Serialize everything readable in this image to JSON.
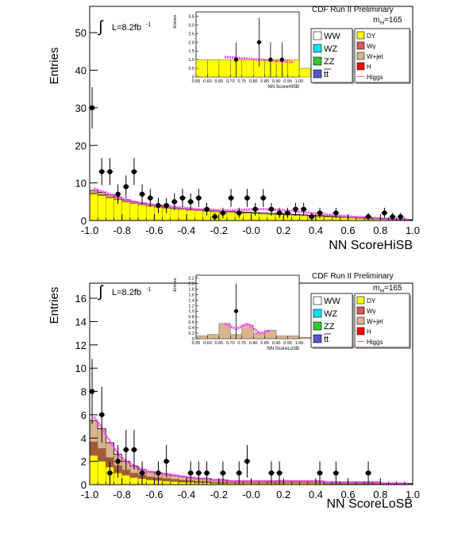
{
  "colors": {
    "WW": "#ffffff",
    "WZ": "#00e5ff",
    "ZZ": "#33cc33",
    "tt": "#5555cc",
    "DY": "#ffff00",
    "Wgamma": "#dd5555",
    "Wjet": "#d9b48f",
    "H": "#ff0000",
    "Higgs": "#ff44ff",
    "data": "#000000"
  },
  "chart_data": [
    {
      "type": "bar",
      "title": "CDF Run II Preliminary",
      "xlabel": "NN ScoreHiSB",
      "ylabel": "Entries",
      "luminosity": "L=8.2fb",
      "lumi_exp": "-1",
      "integral_symbol": "∫",
      "mass_label": "m",
      "mass_sub": "H",
      "mass_value": "=165",
      "xlim": [
        -1.0,
        1.0
      ],
      "ylim": [
        0,
        57
      ],
      "xticks": [
        "-1.0",
        "-0.8",
        "-0.6",
        "-0.4",
        "-0.2",
        "-0.0",
        "0.2",
        "0.4",
        "0.6",
        "0.8",
        "1.0"
      ],
      "yticks": [
        "0",
        "10",
        "20",
        "30",
        "40",
        "50"
      ],
      "ytick_values": [
        0,
        10,
        20,
        30,
        40,
        50
      ],
      "bin_width": 0.05,
      "bins_x_start": -1.0,
      "bkg_total": [
        8,
        7.5,
        6.8,
        6.2,
        5.5,
        5,
        4.6,
        4.2,
        3.9,
        3.6,
        3.4,
        3.2,
        3.0,
        2.9,
        2.7,
        2.6,
        2.5,
        2.4,
        2.3,
        2.2,
        2.1,
        2.0,
        1.9,
        1.8,
        1.7,
        1.6,
        1.5,
        1.4,
        1.3,
        1.2,
        1.1,
        1.0,
        0.9,
        0.8,
        0.7,
        0.6,
        0.5,
        0.4,
        0.3,
        0.2
      ],
      "dy_fill": [
        7,
        6.6,
        6.0,
        5.5,
        4.9,
        4.5,
        4.1,
        3.8,
        3.5,
        3.2,
        3.0,
        2.9,
        2.7,
        2.6,
        2.4,
        2.3,
        2.2,
        2.1,
        2.0,
        1.9,
        1.8,
        1.7,
        1.6,
        1.5,
        1.4,
        1.3,
        1.2,
        1.1,
        1.0,
        0.9,
        0.8,
        0.7,
        0.6,
        0.5,
        0.4,
        0.35,
        0.3,
        0.25,
        0.2,
        0.15
      ],
      "higgs": [
        8.5,
        7.8,
        7.0,
        6.3,
        5.6,
        5.0,
        4.6,
        4.3,
        4.0,
        3.8,
        3.6,
        3.4,
        3.2,
        3.0,
        2.9,
        2.8,
        2.7,
        2.7,
        2.8,
        2.9,
        3.0,
        3.0,
        2.9,
        2.8,
        2.6,
        2.4,
        2.2,
        2.0,
        1.8,
        1.6,
        1.4,
        1.2,
        1.0,
        0.9,
        0.8,
        0.6,
        0.5,
        0.4,
        0.3,
        0.2
      ],
      "data_points": [
        {
          "x": -0.985,
          "y": 30,
          "err": 5.5
        },
        {
          "x": -0.925,
          "y": 13,
          "err": 3.6
        },
        {
          "x": -0.875,
          "y": 13,
          "err": 3.6
        },
        {
          "x": -0.825,
          "y": 7,
          "err": 2.6
        },
        {
          "x": -0.775,
          "y": 9,
          "err": 3.0
        },
        {
          "x": -0.725,
          "y": 13,
          "err": 3.6
        },
        {
          "x": -0.675,
          "y": 7,
          "err": 2.6
        },
        {
          "x": -0.625,
          "y": 6,
          "err": 2.4
        },
        {
          "x": -0.575,
          "y": 4,
          "err": 2.0
        },
        {
          "x": -0.525,
          "y": 4,
          "err": 2.0
        },
        {
          "x": -0.475,
          "y": 5,
          "err": 2.2
        },
        {
          "x": -0.425,
          "y": 6,
          "err": 2.4
        },
        {
          "x": -0.375,
          "y": 5,
          "err": 2.2
        },
        {
          "x": -0.325,
          "y": 6,
          "err": 2.4
        },
        {
          "x": -0.275,
          "y": 3,
          "err": 1.7
        },
        {
          "x": -0.225,
          "y": 1,
          "err": 1.0
        },
        {
          "x": -0.175,
          "y": 2,
          "err": 1.4
        },
        {
          "x": -0.125,
          "y": 6,
          "err": 2.4
        },
        {
          "x": -0.075,
          "y": 2,
          "err": 1.4
        },
        {
          "x": -0.025,
          "y": 6,
          "err": 2.4
        },
        {
          "x": 0.025,
          "y": 3,
          "err": 1.7
        },
        {
          "x": 0.075,
          "y": 6,
          "err": 2.4
        },
        {
          "x": 0.125,
          "y": 3,
          "err": 1.7
        },
        {
          "x": 0.175,
          "y": 2,
          "err": 1.4
        },
        {
          "x": 0.225,
          "y": 2,
          "err": 1.4
        },
        {
          "x": 0.275,
          "y": 3,
          "err": 1.7
        },
        {
          "x": 0.325,
          "y": 3,
          "err": 1.7
        },
        {
          "x": 0.375,
          "y": 1,
          "err": 1.0
        },
        {
          "x": 0.425,
          "y": 2,
          "err": 1.4
        },
        {
          "x": 0.525,
          "y": 2,
          "err": 1.4
        },
        {
          "x": 0.725,
          "y": 1,
          "err": 1.0
        },
        {
          "x": 0.825,
          "y": 2,
          "err": 1.4
        },
        {
          "x": 0.875,
          "y": 1,
          "err": 1.0
        },
        {
          "x": 0.925,
          "y": 1,
          "err": 1.0
        }
      ],
      "inset": {
        "xlabel": "NN ScoreHiSB",
        "ylabel": "Entries",
        "xlim": [
          0.55,
          1.0
        ],
        "ylim": [
          0,
          3.75
        ],
        "xticks": [
          "0.55",
          "0.60",
          "0.65",
          "0.70",
          "0.75",
          "0.80",
          "0.85",
          "0.90",
          "0.95",
          "1.00"
        ],
        "yticks": [
          "0",
          "0.5",
          "1.0",
          "1.5",
          "2.0",
          "2.5",
          "3.0",
          "3.5"
        ],
        "ytick_values": [
          0,
          0.5,
          1.0,
          1.5,
          2.0,
          2.5,
          3.0,
          3.5
        ],
        "bkg_hist": [
          1.0,
          1.0,
          1.0,
          1.0,
          1.0,
          1.0,
          1.0,
          1.0,
          1.0,
          0.5
        ],
        "higgs": [
          null,
          null,
          1.15,
          1.1,
          1.05,
          1.0,
          0.95,
          0.9,
          0.85,
          null
        ],
        "data_points": [
          {
            "x": 0.725,
            "y": 1.0,
            "err": 1.0
          },
          {
            "x": 0.825,
            "y": 2.0,
            "err": 1.4
          },
          {
            "x": 0.875,
            "y": 1.0,
            "err": 1.0
          },
          {
            "x": 0.925,
            "y": 1.0,
            "err": 1.0
          }
        ]
      }
    },
    {
      "type": "bar",
      "title": "CDF Run II Preliminary",
      "xlabel": "NN ScoreLoSB",
      "ylabel": "Entries",
      "luminosity": "L=8.2fb",
      "lumi_exp": "-1",
      "integral_symbol": "∫",
      "mass_label": "m",
      "mass_sub": "H",
      "mass_value": "=165",
      "xlim": [
        -1.0,
        1.0
      ],
      "ylim": [
        0,
        17.3
      ],
      "xticks": [
        "-1.0",
        "-0.8",
        "-0.6",
        "-0.4",
        "-0.2",
        "-0.0",
        "0.2",
        "0.4",
        "0.6",
        "0.8",
        "1.0"
      ],
      "yticks": [
        "0",
        "2",
        "4",
        "6",
        "8",
        "10",
        "12",
        "14",
        "16"
      ],
      "ytick_values": [
        0,
        2,
        4,
        6,
        8,
        10,
        12,
        14,
        16
      ],
      "bin_width": 0.05,
      "bins_x_start": -1.0,
      "bkg_total": [
        5.5,
        4.8,
        3.6,
        2.6,
        2.0,
        1.6,
        1.3,
        1.1,
        1.0,
        0.9,
        0.8,
        0.7,
        0.6,
        0.5,
        0.5,
        0.4,
        0.4,
        0.3,
        0.3,
        0.3,
        0.3,
        0.3,
        0.3,
        0.3,
        0.3,
        0.3,
        0.3,
        0.3,
        0.3,
        0.2,
        0.2,
        0.2,
        0.2,
        0.2,
        0.2,
        0.2,
        0.1,
        0.1,
        0.1,
        0.1
      ],
      "dy_fill": [
        2.5,
        2.0,
        1.5,
        1.0,
        0.8,
        0.6,
        0.5,
        0.4,
        0.35,
        0.3,
        0.25,
        0.2,
        0.2,
        0.15,
        0.15,
        0.1,
        0.1,
        0.1,
        0.1,
        0.1,
        0.1,
        0.1,
        0.1,
        0.1,
        0.1,
        0.1,
        0.1,
        0.1,
        0.1,
        0.05,
        0.05,
        0.05,
        0.05,
        0.05,
        0.05,
        0.05,
        0.05,
        0.05,
        0.05,
        0.05
      ],
      "higgs": [
        5.8,
        4.9,
        3.7,
        2.7,
        2.0,
        1.6,
        1.3,
        1.1,
        1.0,
        0.9,
        0.8,
        0.7,
        0.6,
        0.5,
        0.5,
        0.4,
        0.4,
        0.3,
        0.3,
        0.3,
        0.3,
        0.3,
        0.3,
        0.3,
        0.3,
        0.3,
        0.3,
        0.3,
        0.3,
        0.2,
        0.2,
        0.2,
        0.2,
        0.2,
        0.2,
        0.2,
        0.1,
        0.1,
        0.1,
        0.1
      ],
      "data_points": [
        {
          "x": -0.985,
          "y": 8,
          "err": 2.8
        },
        {
          "x": -0.925,
          "y": 6,
          "err": 2.4
        },
        {
          "x": -0.875,
          "y": 1,
          "err": 1.0
        },
        {
          "x": -0.825,
          "y": 2,
          "err": 1.4
        },
        {
          "x": -0.775,
          "y": 3,
          "err": 1.7
        },
        {
          "x": -0.725,
          "y": 3,
          "err": 1.7
        },
        {
          "x": -0.675,
          "y": 1,
          "err": 1.0
        },
        {
          "x": -0.575,
          "y": 1,
          "err": 1.0
        },
        {
          "x": -0.525,
          "y": 2,
          "err": 1.4
        },
        {
          "x": -0.375,
          "y": 1,
          "err": 1.0
        },
        {
          "x": -0.325,
          "y": 1,
          "err": 1.0
        },
        {
          "x": -0.275,
          "y": 1,
          "err": 1.0
        },
        {
          "x": -0.175,
          "y": 1,
          "err": 1.0
        },
        {
          "x": -0.075,
          "y": 1,
          "err": 1.0
        },
        {
          "x": -0.025,
          "y": 2,
          "err": 1.4
        },
        {
          "x": 0.125,
          "y": 1,
          "err": 1.0
        },
        {
          "x": 0.175,
          "y": 1,
          "err": 1.0
        },
        {
          "x": 0.425,
          "y": 1,
          "err": 1.0
        },
        {
          "x": 0.525,
          "y": 1,
          "err": 1.0
        },
        {
          "x": 0.725,
          "y": 1,
          "err": 1.0
        }
      ],
      "inset": {
        "xlabel": "NN ScoreLoSB",
        "ylabel": "Entries",
        "xlim": [
          0.55,
          1.0
        ],
        "ylim": [
          0,
          2.3
        ],
        "xticks": [
          "0.55",
          "0.60",
          "0.65",
          "0.70",
          "0.75",
          "0.80",
          "0.85",
          "0.90",
          "0.95",
          "1.00"
        ],
        "yticks": [
          "0",
          "0.2",
          "0.4",
          "0.6",
          "0.8",
          "1.0",
          "1.2",
          "1.4",
          "1.6",
          "1.8",
          "2.0",
          "2.2"
        ],
        "ytick_values": [
          0,
          0.2,
          0.4,
          0.6,
          0.8,
          1.0,
          1.2,
          1.4,
          1.6,
          1.8,
          2.0,
          2.2
        ],
        "bkg_hist": [
          0.1,
          0.15,
          0.55,
          0.15,
          0.5,
          0.2,
          0.3,
          0.1,
          0.1,
          0.05
        ],
        "higgs": [
          null,
          null,
          0.55,
          0.35,
          0.55,
          0.2,
          0.3,
          null,
          null,
          null
        ],
        "data_points": [
          {
            "x": 0.725,
            "y": 1.0,
            "err": 1.0
          }
        ]
      }
    }
  ],
  "legend": {
    "left": [
      {
        "label": "WW",
        "key": "WW"
      },
      {
        "label": "WZ",
        "key": "WZ"
      },
      {
        "label": "ZZ",
        "key": "ZZ"
      },
      {
        "label": "tt",
        "key": "tt",
        "overbar": true
      }
    ],
    "right": [
      {
        "label": "DY",
        "key": "DY"
      },
      {
        "label": "Wγ",
        "key": "Wgamma"
      },
      {
        "label": "W+jet",
        "key": "Wjet"
      },
      {
        "label": "H",
        "key": "H"
      },
      {
        "label": "Higgs",
        "key": "Higgs",
        "line": true
      }
    ]
  }
}
